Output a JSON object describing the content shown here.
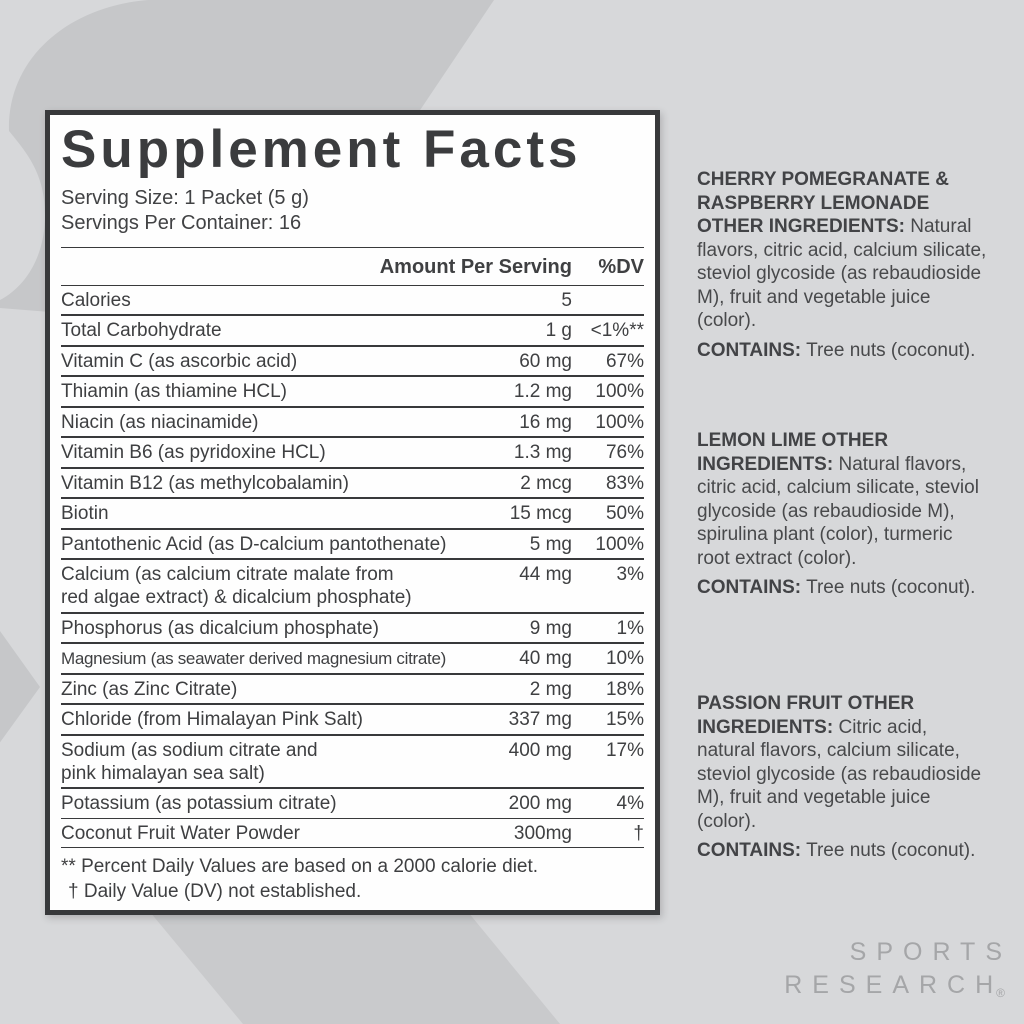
{
  "background": {
    "base_color": "#d7d8da",
    "shape_color": "#c6c7c9"
  },
  "label": {
    "title": "Supplement Facts",
    "serving_size": "Serving Size: 1 Packet (5 g)",
    "servings_per_container": "Servings Per Container: 16",
    "header": {
      "amount": "Amount Per Serving",
      "dv": "%DV"
    },
    "rows": [
      {
        "name": "Calories",
        "amount": "5",
        "dv": ""
      },
      {
        "name": "Total Carbohydrate",
        "amount": "1 g",
        "dv": "<1%**"
      },
      {
        "name": "Vitamin C (as ascorbic acid)",
        "amount": "60 mg",
        "dv": "67%"
      },
      {
        "name": "Thiamin (as thiamine HCL)",
        "amount": "1.2 mg",
        "dv": "100%"
      },
      {
        "name": "Niacin (as niacinamide)",
        "amount": "16 mg",
        "dv": "100%"
      },
      {
        "name": "Vitamin B6 (as pyridoxine HCL)",
        "amount": "1.3 mg",
        "dv": "76%"
      },
      {
        "name": "Vitamin B12 (as methylcobalamin)",
        "amount": "2 mcg",
        "dv": "83%"
      },
      {
        "name": "Biotin",
        "amount": "15 mcg",
        "dv": "50%"
      },
      {
        "name": "Pantothenic Acid (as D-calcium pantothenate)",
        "amount": "5 mg",
        "dv": "100%"
      },
      {
        "name": "Calcium (as calcium citrate malate from",
        "name2": "red algae extract) & dicalcium phosphate)",
        "amount": "44 mg",
        "dv": "3%"
      },
      {
        "name": "Phosphorus (as dicalcium phosphate)",
        "amount": "9 mg",
        "dv": "1%"
      },
      {
        "name": "Magnesium (as seawater derived magnesium citrate)",
        "amount": "40 mg",
        "dv": "10%",
        "condensed": true
      },
      {
        "name": "Zinc (as Zinc Citrate)",
        "amount": "2 mg",
        "dv": "18%"
      },
      {
        "name": "Chloride (from Himalayan Pink Salt)",
        "amount": "337 mg",
        "dv": "15%"
      },
      {
        "name": "Sodium (as sodium citrate and",
        "name2": "pink himalayan sea salt)",
        "amount": "400 mg",
        "dv": "17%"
      },
      {
        "name": "Potassium (as potassium citrate)",
        "amount": "200 mg",
        "dv": "4%"
      }
    ],
    "extra_rows": [
      {
        "name": "Coconut Fruit Water Powder",
        "amount": "300mg",
        "dv": "†"
      }
    ],
    "footnotes": [
      "** Percent Daily Values are based on a 2000 calorie diet.",
      "† Daily Value (DV) not established."
    ]
  },
  "ingredients": {
    "blocks": [
      {
        "heading": "CHERRY POMEGRANATE & RASPBERRY LEMONADE OTHER INGREDIENTS:",
        "body": "Natural flavors, citric acid, calcium silicate, steviol glycoside (as rebaudioside M), fruit and vegetable juice (color).",
        "contains_label": "CONTAINS:",
        "contains_body": "Tree nuts (coconut)."
      },
      {
        "heading": "LEMON LIME OTHER INGREDIENTS:",
        "body": "Natural flavors, citric acid, calcium silicate, steviol glycoside (as rebaudioside M), spirulina plant (color), turmeric root extract (color).",
        "contains_label": "CONTAINS:",
        "contains_body": "Tree nuts (coconut)."
      },
      {
        "heading": "PASSION FRUIT OTHER INGREDIENTS:",
        "body": "Citric acid, natural flavors, calcium silicate, steviol glycoside (as rebaudioside M), fruit and vegetable juice (color).",
        "contains_label": "CONTAINS:",
        "contains_body": "Tree nuts (coconut)."
      }
    ]
  },
  "brand": {
    "line1": "SPORTS",
    "line2": "RESEARCH",
    "registered": "®"
  }
}
